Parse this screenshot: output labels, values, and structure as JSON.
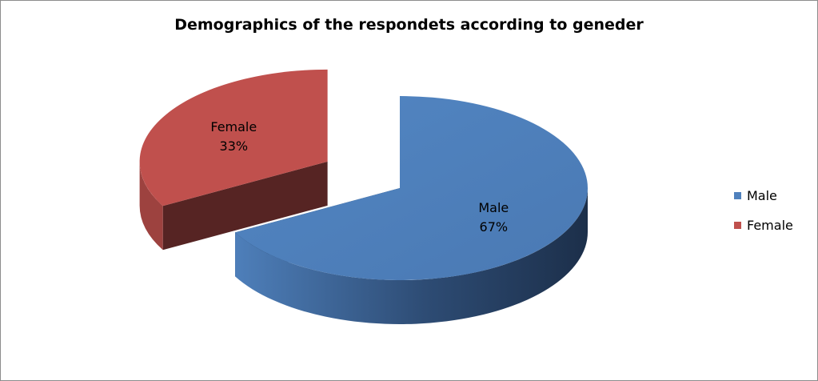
{
  "chart_data": {
    "type": "pie",
    "title": "Demographics of the respondets according to geneder",
    "categories": [
      "Male",
      "Female"
    ],
    "values": [
      67,
      33
    ],
    "value_labels": [
      "67%",
      "33%"
    ],
    "colors": [
      "#4f81bd",
      "#c0504d"
    ],
    "exploded": [
      "Female"
    ],
    "style": "3d",
    "legend": {
      "position": "right",
      "entries": [
        "Male",
        "Female"
      ]
    }
  }
}
